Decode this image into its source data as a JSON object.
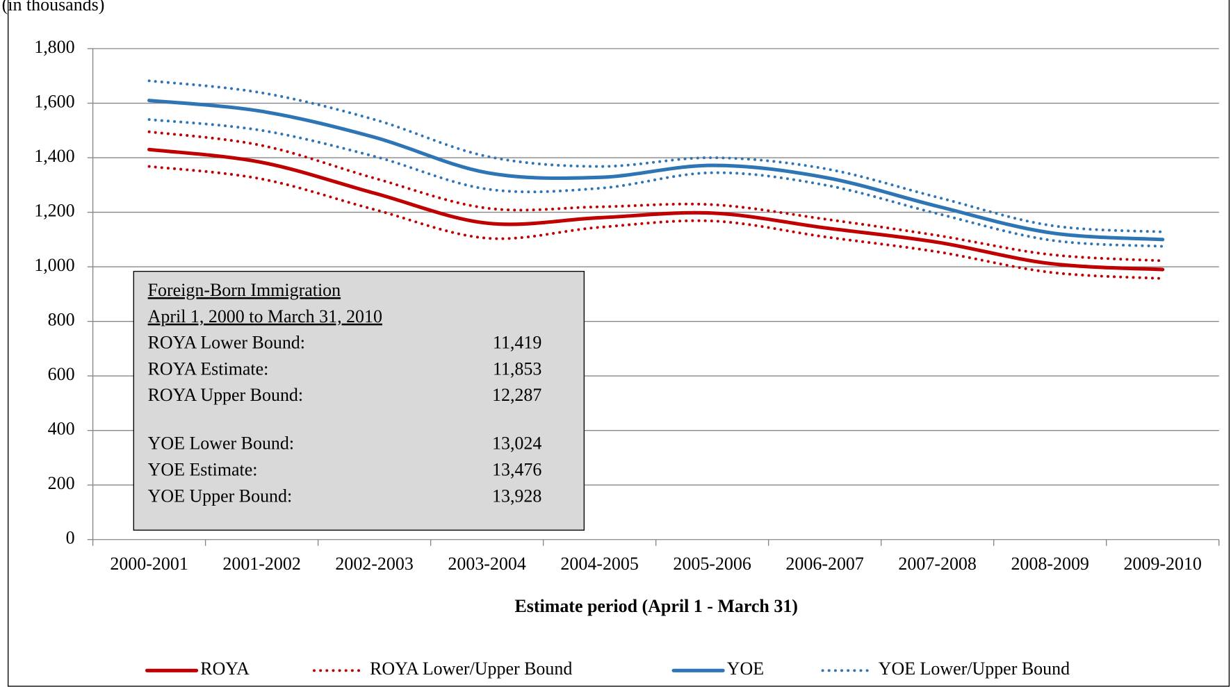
{
  "chart_data": {
    "type": "line",
    "subtitle": "(in thousands)",
    "x_label": "Estimate period (April 1 - March 31)",
    "categories": [
      "2000-2001",
      "2001-2002",
      "2002-2003",
      "2003-2004",
      "2004-2005",
      "2005-2006",
      "2006-2007",
      "2007-2008",
      "2008-2009",
      "2009-2010"
    ],
    "series": [
      {
        "name": "ROYA",
        "color": "#c00000",
        "style": "solid",
        "values": [
          1430,
          1383,
          1270,
          1160,
          1180,
          1197,
          1143,
          1090,
          1012,
          990
        ]
      },
      {
        "name": "ROYA Lower/Upper Bound",
        "color": "#c00000",
        "style": "dotted",
        "lower": [
          1368,
          1322,
          1210,
          1105,
          1145,
          1168,
          1110,
          1055,
          980,
          957
        ],
        "upper": [
          1495,
          1445,
          1325,
          1215,
          1220,
          1228,
          1175,
          1115,
          1045,
          1022
        ]
      },
      {
        "name": "YOE",
        "color": "#2e75b6",
        "style": "solid",
        "values": [
          1610,
          1570,
          1475,
          1345,
          1328,
          1372,
          1328,
          1222,
          1125,
          1100
        ]
      },
      {
        "name": "YOE Lower/Upper Bound",
        "color": "#2e75b6",
        "style": "dotted",
        "lower": [
          1540,
          1500,
          1405,
          1285,
          1288,
          1345,
          1300,
          1195,
          1098,
          1075
        ],
        "upper": [
          1682,
          1638,
          1540,
          1405,
          1368,
          1400,
          1360,
          1255,
          1152,
          1128
        ]
      }
    ],
    "ylim": [
      0,
      1800
    ],
    "yticks": [
      0,
      200,
      400,
      600,
      800,
      {
        "value": 1000,
        "label": "1,000"
      },
      {
        "value": 1200,
        "label": "1,200"
      },
      {
        "value": 1400,
        "label": "1,400"
      },
      {
        "value": 1600,
        "label": "1,600"
      },
      {
        "value": 1800,
        "label": "1,800"
      }
    ],
    "grid": true,
    "legend": "bottom",
    "annotation": {
      "title_lines": [
        "Foreign-Born Immigration",
        "April 1, 2000 to March 31, 2010"
      ],
      "groups": [
        [
          {
            "label": "ROYA Lower Bound:",
            "value": 11419,
            "value_label": "11,419"
          },
          {
            "label": "ROYA Estimate:",
            "value": 11853,
            "value_label": "11,853"
          },
          {
            "label": "ROYA Upper Bound:",
            "value": 12287,
            "value_label": "12,287"
          }
        ],
        [
          {
            "label": "YOE Lower Bound:",
            "value": 13024,
            "value_label": "13,024"
          },
          {
            "label": "YOE Estimate:",
            "value": 13476,
            "value_label": "13,476"
          },
          {
            "label": "YOE Upper Bound:",
            "value": 13928,
            "value_label": "13,928"
          }
        ]
      ]
    }
  }
}
